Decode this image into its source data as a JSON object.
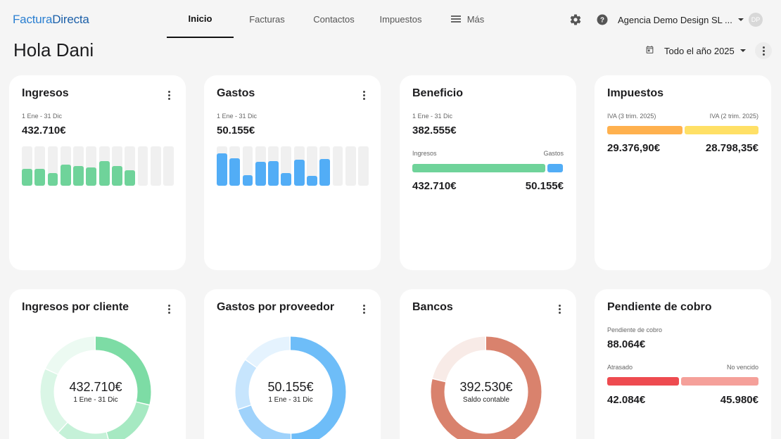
{
  "logo": {
    "part1": "Factura",
    "part2": "Directa"
  },
  "nav": {
    "items": [
      {
        "label": "Inicio",
        "active": true
      },
      {
        "label": "Facturas"
      },
      {
        "label": "Contactos"
      },
      {
        "label": "Impuestos"
      },
      {
        "label": "Más",
        "icon": "menu-icon"
      }
    ]
  },
  "header": {
    "settings_icon": "gear-icon",
    "help_icon": "help-icon",
    "company": "Agencia Demo Design SL ...",
    "avatar_initials": "DP"
  },
  "greeting": "Hola Dani",
  "period": {
    "icon": "calendar-icon",
    "label": "Todo el año 2025"
  },
  "cards": {
    "ingresos": {
      "title": "Ingresos",
      "range": "1 Ene - 31 Dic",
      "total": "432.710€",
      "color": "#6fd39a",
      "monthly_fraction": [
        0.42,
        0.42,
        0.33,
        0.53,
        0.5,
        0.46,
        0.63,
        0.5,
        0.4,
        0,
        0,
        0
      ]
    },
    "gastos": {
      "title": "Gastos",
      "range": "1 Ene - 31 Dic",
      "total": "50.155€",
      "color": "#52adf6",
      "monthly_fraction": [
        0.82,
        0.7,
        0.27,
        0.6,
        0.63,
        0.33,
        0.66,
        0.25,
        0.68,
        0,
        0,
        0
      ]
    },
    "beneficio": {
      "title": "Beneficio",
      "range": "1 Ene - 31 Dic",
      "total": "382.555€",
      "left_label": "Ingresos",
      "right_label": "Gastos",
      "left_value": "432.710€",
      "right_value": "50.155€",
      "left_color": "#6fd39a",
      "right_color": "#52adf6",
      "left_fraction": 0.896
    },
    "impuestos": {
      "title": "Impuestos",
      "left_label": "IVA (3 trim. 2025)",
      "right_label": "IVA (2 trim. 2025)",
      "left_value": "29.376,90€",
      "right_value": "28.798,35€",
      "left_color": "#ffb14e",
      "right_color": "#ffe066"
    },
    "ingresos_cliente": {
      "title": "Ingresos por cliente",
      "value": "432.710€",
      "sub": "1 Ene - 31 Dic",
      "colors": [
        "#7ddca5",
        "#a6e9c2",
        "#c5f1d8",
        "#daf6e6",
        "#ecfaf2"
      ]
    },
    "gastos_proveedor": {
      "title": "Gastos por proveedor",
      "value": "50.155€",
      "sub": "1 Ene - 31 Dic",
      "colors": [
        "#6ebdf8",
        "#9fd2fb",
        "#c7e5fd",
        "#e5f3fe"
      ]
    },
    "bancos": {
      "title": "Bancos",
      "value": "392.530€",
      "sub": "Saldo contable",
      "colors": [
        "#d9826d",
        "#f8ebe7"
      ]
    },
    "pendiente": {
      "title": "Pendiente de cobro",
      "label": "Pendiente de cobro",
      "total": "88.064€",
      "left_label": "Atrasado",
      "right_label": "No vencido",
      "left_value": "42.084€",
      "right_value": "45.980€",
      "left_color": "#ee4b50",
      "right_color": "#f5a09a"
    }
  }
}
